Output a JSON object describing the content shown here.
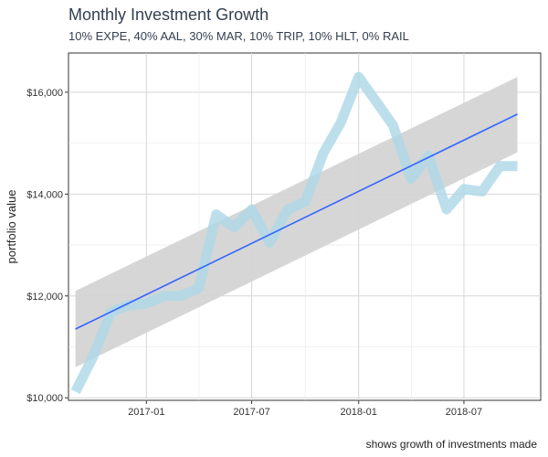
{
  "chart_data": {
    "type": "line",
    "title": "Monthly Investment Growth",
    "subtitle": "10% EXPE, 40% AAL, 30% MAR, 10% TRIP, 10% HLT, 0% RAIL",
    "caption": "shows growth of investments made",
    "xlabel": "",
    "ylabel": "portfolio value",
    "x_ticks": [
      "2017-01",
      "2017-07",
      "2018-01",
      "2018-07"
    ],
    "y_ticks": [
      "$10,000",
      "$12,000",
      "$14,000",
      "$16,000"
    ],
    "y_tick_values": [
      10000,
      12000,
      14000,
      16000
    ],
    "xlim": [
      "2016-08-20",
      "2018-11-10"
    ],
    "ylim": [
      9950,
      16770
    ],
    "grid": true,
    "series": [
      {
        "color": "#add8e6",
        "x": [
          "2016-09-01",
          "2016-10-01",
          "2016-11-01",
          "2016-12-01",
          "2017-01-01",
          "2017-02-01",
          "2017-03-01",
          "2017-04-01",
          "2017-05-01",
          "2017-06-01",
          "2017-07-01",
          "2017-08-01",
          "2017-09-01",
          "2017-10-01",
          "2017-11-01",
          "2017-12-01",
          "2018-01-01",
          "2018-02-01",
          "2018-03-01",
          "2018-04-01",
          "2018-05-01",
          "2018-06-01",
          "2018-07-01",
          "2018-08-01",
          "2018-09-01",
          "2018-10-01"
        ],
        "values": [
          10120,
          10800,
          11680,
          11820,
          11850,
          12000,
          12000,
          12150,
          13600,
          13350,
          13700,
          13050,
          13700,
          13850,
          14800,
          15400,
          16300,
          15800,
          15350,
          14300,
          14750,
          13700,
          14100,
          14050,
          14550,
          14550
        ]
      }
    ],
    "trend": {
      "color": "#3366ff",
      "band_color": "#d4d4d4",
      "x": [
        "2016-09-01",
        "2018-10-01"
      ],
      "values": [
        11350,
        15570
      ],
      "band_upper": [
        12100,
        16300
      ],
      "band_lower": [
        10600,
        14820
      ]
    }
  }
}
